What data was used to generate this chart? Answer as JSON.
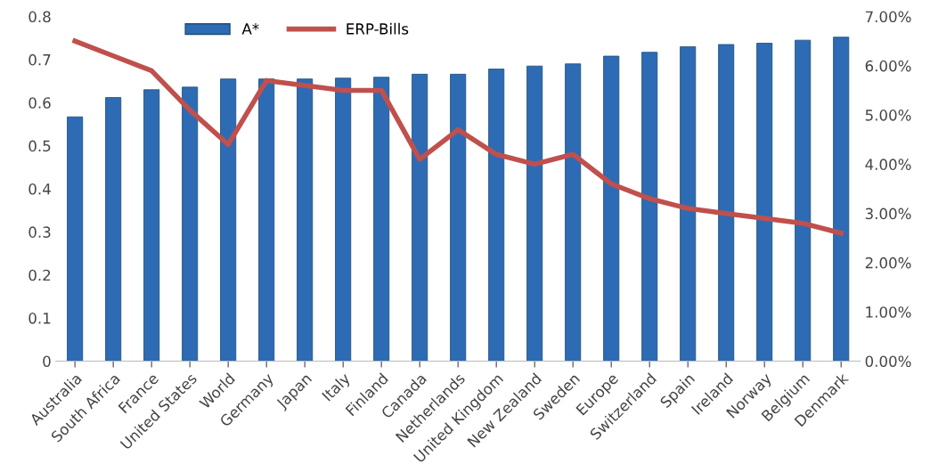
{
  "chart_data": {
    "type": "bar",
    "categories": [
      "Australia",
      "South Africa",
      "France",
      "United States",
      "World",
      "Germany",
      "Japan",
      "Italy",
      "Finland",
      "Canada",
      "Netherlands",
      "United Kingdom",
      "New Zealand",
      "Sweden",
      "Europe",
      "Switzerland",
      "Spain",
      "Ireland",
      "Norway",
      "Belgium",
      "Denmark"
    ],
    "series": [
      {
        "name": "A*",
        "color": "#2e6bb5",
        "values": [
          0.567,
          0.612,
          0.63,
          0.636,
          0.655,
          0.655,
          0.655,
          0.657,
          0.659,
          0.666,
          0.666,
          0.678,
          0.685,
          0.69,
          0.708,
          0.717,
          0.73,
          0.735,
          0.738,
          0.745,
          0.752
        ]
      },
      {
        "name": "ERP-Bills",
        "type": "line",
        "axis": "y2",
        "color": "#c0504d",
        "values": [
          6.5,
          6.2,
          5.9,
          5.1,
          4.4,
          5.7,
          5.6,
          5.5,
          5.5,
          4.1,
          4.7,
          4.2,
          4.0,
          4.2,
          3.6,
          3.3,
          3.1,
          3.0,
          2.9,
          2.8,
          2.6
        ]
      }
    ],
    "ylim": [
      0,
      0.8
    ],
    "yticks": [
      0,
      0.1,
      0.2,
      0.3,
      0.4,
      0.5,
      0.6,
      0.7,
      0.8
    ],
    "y2lim": [
      0,
      7
    ],
    "y2ticks": [
      {
        "value": 0,
        "label": "0.00%"
      },
      {
        "value": 1,
        "label": "1.00%"
      },
      {
        "value": 2,
        "label": "2.00%"
      },
      {
        "value": 3,
        "label": "3.00%"
      },
      {
        "value": 4,
        "label": "4.00%"
      },
      {
        "value": 5,
        "label": "5.00%"
      },
      {
        "value": 6,
        "label": "6.00%"
      },
      {
        "value": 7,
        "label": "7.00%"
      }
    ],
    "legend": "top",
    "grid": false,
    "marker": "none",
    "line_style": "solid"
  }
}
